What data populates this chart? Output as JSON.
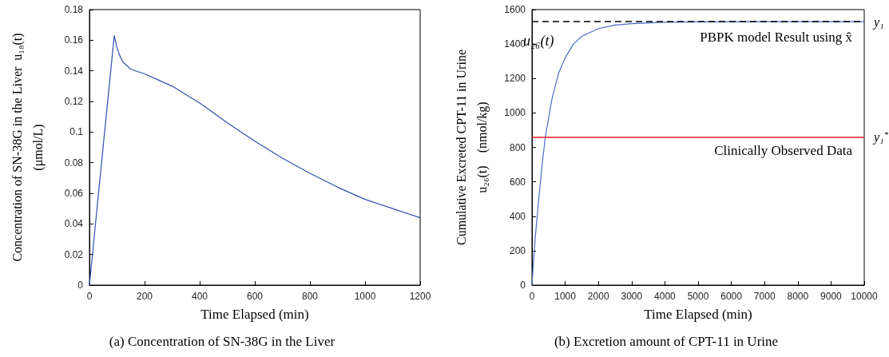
{
  "chart_data": [
    {
      "type": "line",
      "title": "(a) Concentration of SN-38G in the Liver",
      "xlabel": "Time Elapsed (min)",
      "ylabel": "Concentration of SN-38G in the Liver  u₁₈(t)\n(μmol/L)",
      "x": [
        0,
        30,
        60,
        90,
        100,
        110,
        120,
        150,
        200,
        250,
        300,
        400,
        500,
        600,
        700,
        800,
        900,
        1000,
        1100,
        1200
      ],
      "series": [
        {
          "color": "#2f4fb0",
          "values": [
            0,
            0.055,
            0.109,
            0.163,
            0.155,
            0.15,
            0.146,
            0.141,
            0.138,
            0.134,
            0.13,
            0.119,
            0.106,
            0.094,
            0.083,
            0.073,
            0.064,
            0.056,
            0.05,
            0.044
          ]
        }
      ],
      "xlim": [
        0,
        1200
      ],
      "xticks": [
        0,
        200,
        400,
        600,
        800,
        1000,
        1200
      ],
      "ylim": [
        0,
        0.18
      ],
      "yticks": [
        0,
        0.02,
        0.04,
        0.06,
        0.08,
        0.1,
        0.12,
        0.14,
        0.16,
        0.18
      ],
      "grid": false,
      "marker": "none",
      "line_style": "solid"
    },
    {
      "type": "line",
      "title": "(b) Excretion amount of CPT-11 in Urine",
      "xlabel": "Time Elapsed (min)",
      "ylabel": "Cumulative Excreted CPT-11 in Urine\nu₂₆(t)    (nmol/kg)",
      "x": [
        0,
        50,
        100,
        200,
        300,
        400,
        600,
        800,
        1000,
        1250,
        1500,
        2000,
        2500,
        3000,
        4000,
        5000,
        7000,
        10000
      ],
      "series": [
        {
          "color": "#4a6cc8",
          "values": [
            0,
            150,
            280,
            490,
            690,
            858,
            1080,
            1230,
            1320,
            1400,
            1445,
            1490,
            1510,
            1518,
            1526,
            1529,
            1530,
            1530
          ]
        }
      ],
      "xlim": [
        0,
        10000
      ],
      "xticks": [
        0,
        1000,
        2000,
        3000,
        4000,
        5000,
        6000,
        7000,
        8000,
        9000,
        10000
      ],
      "ylim": [
        0,
        1600
      ],
      "yticks": [
        0,
        200,
        400,
        600,
        800,
        1000,
        1200,
        1400,
        1600
      ],
      "ref_lines": [
        {
          "axis": "y",
          "value": 1530,
          "label": "y₁",
          "color": "#000000",
          "line_style": "dashed"
        },
        {
          "axis": "y",
          "value": 858,
          "label": "y₁$^{*}$",
          "color": "#e8141c",
          "line_style": "solid"
        }
      ],
      "annotations": [
        "u₂₆(t)",
        "PBPK model Result using x̂",
        "Clinically Observed Data"
      ],
      "grid": false,
      "marker": "none",
      "line_style": "solid"
    }
  ]
}
